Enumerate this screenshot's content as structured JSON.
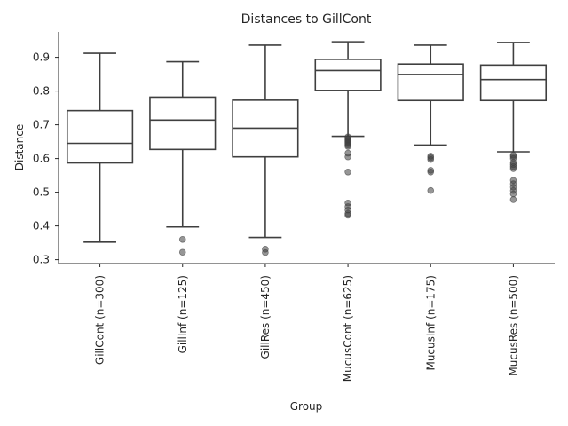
{
  "chart_data": {
    "type": "box",
    "title": "Distances to GillCont",
    "xlabel": "Group",
    "ylabel": "Distance",
    "ylim": [
      0.29,
      0.98
    ],
    "yticks": [
      0.3,
      0.4,
      0.5,
      0.6,
      0.7,
      0.8,
      0.9
    ],
    "grid": false,
    "categories": [
      "GillCont (n=300)",
      "GillInf (n=125)",
      "GillRes (n=450)",
      "MucusCont (n=625)",
      "MucusInf (n=175)",
      "MucusRes (n=500)"
    ],
    "boxes": [
      {
        "whisker_low": 0.352,
        "q1": 0.587,
        "median": 0.645,
        "q3": 0.742,
        "whisker_high": 0.912,
        "outliers": []
      },
      {
        "whisker_low": 0.397,
        "q1": 0.627,
        "median": 0.714,
        "q3": 0.782,
        "whisker_high": 0.887,
        "outliers": [
          0.36,
          0.322
        ]
      },
      {
        "whisker_low": 0.366,
        "q1": 0.605,
        "median": 0.69,
        "q3": 0.773,
        "whisker_high": 0.936,
        "outliers": [
          0.331,
          0.321
        ]
      },
      {
        "whisker_low": 0.666,
        "q1": 0.802,
        "median": 0.861,
        "q3": 0.894,
        "whisker_high": 0.946,
        "outliers": [
          0.664,
          0.66,
          0.656,
          0.652,
          0.648,
          0.644,
          0.64,
          0.636,
          0.616,
          0.605,
          0.56,
          0.468,
          0.457,
          0.447,
          0.437,
          0.432
        ]
      },
      {
        "whisker_low": 0.64,
        "q1": 0.772,
        "median": 0.849,
        "q3": 0.88,
        "whisker_high": 0.936,
        "outliers": [
          0.607,
          0.602,
          0.597,
          0.565,
          0.56,
          0.505
        ]
      },
      {
        "whisker_low": 0.62,
        "q1": 0.772,
        "median": 0.834,
        "q3": 0.877,
        "whisker_high": 0.944,
        "outliers": [
          0.61,
          0.606,
          0.6,
          0.588,
          0.582,
          0.576,
          0.57,
          0.535,
          0.525,
          0.515,
          0.505,
          0.495,
          0.478
        ]
      }
    ]
  }
}
